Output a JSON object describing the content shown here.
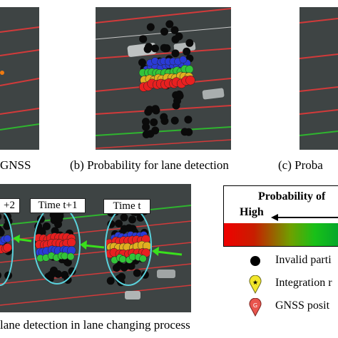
{
  "captions": {
    "a": "GNSS",
    "b": "(b) Probability for lane detection",
    "c": "(c) Proba",
    "d": "lane detection in lane changing process"
  },
  "time_labels": [
    "+2",
    "Time t+1",
    "Time t"
  ],
  "legend": {
    "title": "Probability of",
    "high_label": "High",
    "items": [
      {
        "label": "Invalid parti",
        "icon": "black-dot-icon"
      },
      {
        "label": "Integration r",
        "icon": "yellow-pin-icon"
      },
      {
        "label": "GNSS posit",
        "icon": "red-pin-icon"
      }
    ]
  },
  "colors": {
    "road": "#3e4444",
    "lane_line": "#d23a3a",
    "boundary_line": "#2fb52f",
    "arrow": "#39e01c",
    "ellipse": "#5ad2dc"
  }
}
